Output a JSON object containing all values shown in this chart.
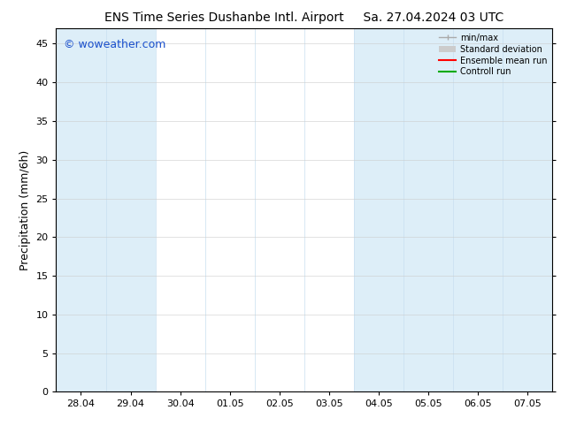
{
  "title_left": "ENS Time Series Dushanbe Intl. Airport",
  "title_right": "Sa. 27.04.2024 03 UTC",
  "ylabel": "Precipitation (mm/6h)",
  "watermark": "© woweather.com",
  "watermark_color": "#1a50cc",
  "ylim": [
    0,
    47
  ],
  "yticks": [
    0,
    5,
    10,
    15,
    20,
    25,
    30,
    35,
    40,
    45
  ],
  "xtick_labels": [
    "28.04",
    "29.04",
    "30.04",
    "01.05",
    "02.05",
    "03.05",
    "04.05",
    "05.05",
    "06.05",
    "07.05"
  ],
  "shaded_x_indices": [
    0,
    1,
    6,
    7,
    8,
    9
  ],
  "shaded_color": "#ddeef8",
  "legend_entries": [
    {
      "label": "min/max",
      "color": "#aaaaaa",
      "style": "minmax"
    },
    {
      "label": "Standard deviation",
      "color": "#cccccc",
      "style": "stddev"
    },
    {
      "label": "Ensemble mean run",
      "color": "#ff0000",
      "style": "line"
    },
    {
      "label": "Controll run",
      "color": "#00aa00",
      "style": "line"
    }
  ],
  "bg_color": "#ffffff",
  "spine_color": "#000000",
  "grid_color": "#cccccc",
  "title_fontsize": 10,
  "tick_fontsize": 8,
  "label_fontsize": 9,
  "watermark_fontsize": 9
}
